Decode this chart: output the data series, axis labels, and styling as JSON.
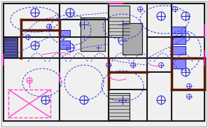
{
  "bg_color": "#f0f0f0",
  "wall_color": "#1a1a1a",
  "wall_dark": "#2d0000",
  "wire_color": "#3030cc",
  "wire_color2": "#0000aa",
  "pink_color": "#ff44cc",
  "magenta_color": "#dd00aa",
  "blue_fill": "#4444ff",
  "light_blue": "#aaaaff",
  "gray_color": "#888888",
  "brown_color": "#5a1a00",
  "figsize": [
    2.97,
    1.83
  ],
  "dpi": 100
}
